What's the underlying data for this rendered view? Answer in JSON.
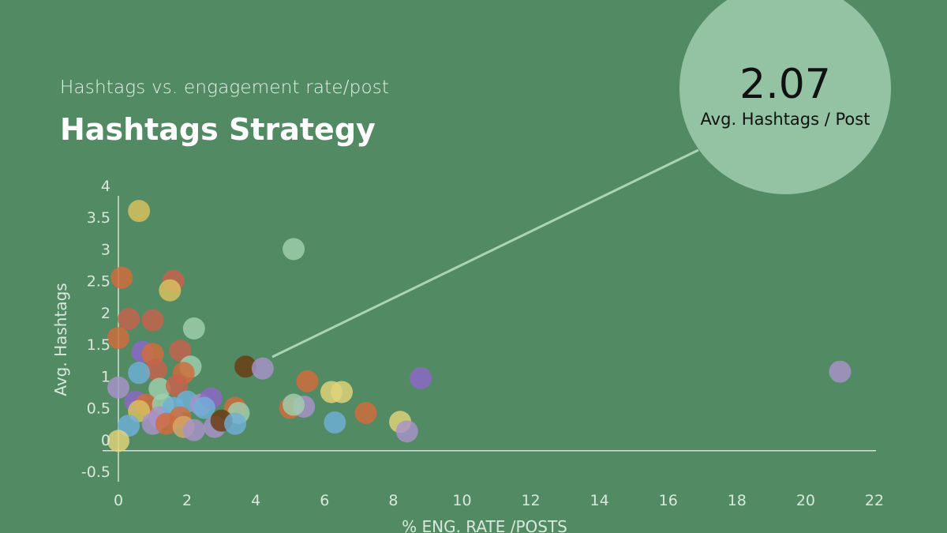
{
  "header": {
    "subtitle": "Hashtags vs. engagement rate/post",
    "title": "Hashtags Strategy"
  },
  "callout": {
    "value": "2.07",
    "label": "Avg. Hashtags / Post"
  },
  "colors": {
    "background": "#528a63",
    "callout": "#93c3a3",
    "axis": "#cfe2d4",
    "palette": [
      "#d9c25f",
      "#c8624c",
      "#d36b3a",
      "#8d66c9",
      "#6fb0d8",
      "#a892c9",
      "#9fd0ae",
      "#e0d47a",
      "#d4a86a",
      "#6a3a10"
    ]
  },
  "chart_data": {
    "type": "scatter",
    "title": "",
    "xlabel": "% ENG. RATE /POSTS",
    "ylabel": "Avg. Hashtags",
    "xlim": [
      0,
      22
    ],
    "ylim": [
      -0.5,
      4
    ],
    "x_ticks": [
      0,
      2,
      4,
      6,
      8,
      10,
      12,
      14,
      16,
      18,
      20,
      22
    ],
    "y_ticks": [
      4,
      3.5,
      3,
      2.5,
      2,
      1.5,
      1,
      0.5,
      0,
      -0.5
    ],
    "grid": false,
    "points": [
      {
        "x": 0.6,
        "y": 3.6,
        "c": 0
      },
      {
        "x": 5.1,
        "y": 3.0,
        "c": 6
      },
      {
        "x": 0.1,
        "y": 2.55,
        "c": 2
      },
      {
        "x": 1.6,
        "y": 2.5,
        "c": 1
      },
      {
        "x": 1.5,
        "y": 2.35,
        "c": 0
      },
      {
        "x": 0.3,
        "y": 1.9,
        "c": 1
      },
      {
        "x": 1.0,
        "y": 1.88,
        "c": 1
      },
      {
        "x": 2.2,
        "y": 1.75,
        "c": 6
      },
      {
        "x": 0.0,
        "y": 1.6,
        "c": 2
      },
      {
        "x": 0.7,
        "y": 1.38,
        "c": 3
      },
      {
        "x": 1.0,
        "y": 1.35,
        "c": 2
      },
      {
        "x": 1.8,
        "y": 1.4,
        "c": 1
      },
      {
        "x": 2.1,
        "y": 1.15,
        "c": 6
      },
      {
        "x": 1.1,
        "y": 1.1,
        "c": 1
      },
      {
        "x": 0.6,
        "y": 1.05,
        "c": 4
      },
      {
        "x": 1.9,
        "y": 1.05,
        "c": 2
      },
      {
        "x": 3.7,
        "y": 1.15,
        "c": 9
      },
      {
        "x": 4.2,
        "y": 1.12,
        "c": 5
      },
      {
        "x": 5.5,
        "y": 0.92,
        "c": 2
      },
      {
        "x": 8.8,
        "y": 0.97,
        "c": 3
      },
      {
        "x": 21.0,
        "y": 1.07,
        "c": 5
      },
      {
        "x": 0.0,
        "y": 0.82,
        "c": 5
      },
      {
        "x": 1.2,
        "y": 0.8,
        "c": 6
      },
      {
        "x": 1.7,
        "y": 0.85,
        "c": 1
      },
      {
        "x": 6.2,
        "y": 0.75,
        "c": 7
      },
      {
        "x": 6.5,
        "y": 0.75,
        "c": 7
      },
      {
        "x": 0.5,
        "y": 0.6,
        "c": 3
      },
      {
        "x": 0.8,
        "y": 0.55,
        "c": 2
      },
      {
        "x": 1.3,
        "y": 0.55,
        "c": 6
      },
      {
        "x": 2.0,
        "y": 0.6,
        "c": 4
      },
      {
        "x": 2.4,
        "y": 0.55,
        "c": 5
      },
      {
        "x": 2.7,
        "y": 0.65,
        "c": 3
      },
      {
        "x": 3.4,
        "y": 0.5,
        "c": 2
      },
      {
        "x": 5.0,
        "y": 0.5,
        "c": 2
      },
      {
        "x": 5.4,
        "y": 0.52,
        "c": 5
      },
      {
        "x": 5.1,
        "y": 0.55,
        "c": 6
      },
      {
        "x": 7.2,
        "y": 0.42,
        "c": 2
      },
      {
        "x": 0.6,
        "y": 0.45,
        "c": 0
      },
      {
        "x": 1.2,
        "y": 0.35,
        "c": 5
      },
      {
        "x": 1.6,
        "y": 0.5,
        "c": 4
      },
      {
        "x": 1.8,
        "y": 0.35,
        "c": 2
      },
      {
        "x": 2.5,
        "y": 0.5,
        "c": 4
      },
      {
        "x": 3.5,
        "y": 0.42,
        "c": 6
      },
      {
        "x": 0.3,
        "y": 0.22,
        "c": 4
      },
      {
        "x": 1.0,
        "y": 0.25,
        "c": 5
      },
      {
        "x": 1.4,
        "y": 0.25,
        "c": 2
      },
      {
        "x": 1.9,
        "y": 0.2,
        "c": 8
      },
      {
        "x": 2.2,
        "y": 0.15,
        "c": 5
      },
      {
        "x": 2.8,
        "y": 0.2,
        "c": 5
      },
      {
        "x": 3.0,
        "y": 0.3,
        "c": 9
      },
      {
        "x": 3.4,
        "y": 0.25,
        "c": 4
      },
      {
        "x": 6.3,
        "y": 0.27,
        "c": 4
      },
      {
        "x": 8.2,
        "y": 0.28,
        "c": 7
      },
      {
        "x": 8.4,
        "y": 0.13,
        "c": 5
      },
      {
        "x": 0.0,
        "y": -0.02,
        "c": 7
      }
    ]
  }
}
